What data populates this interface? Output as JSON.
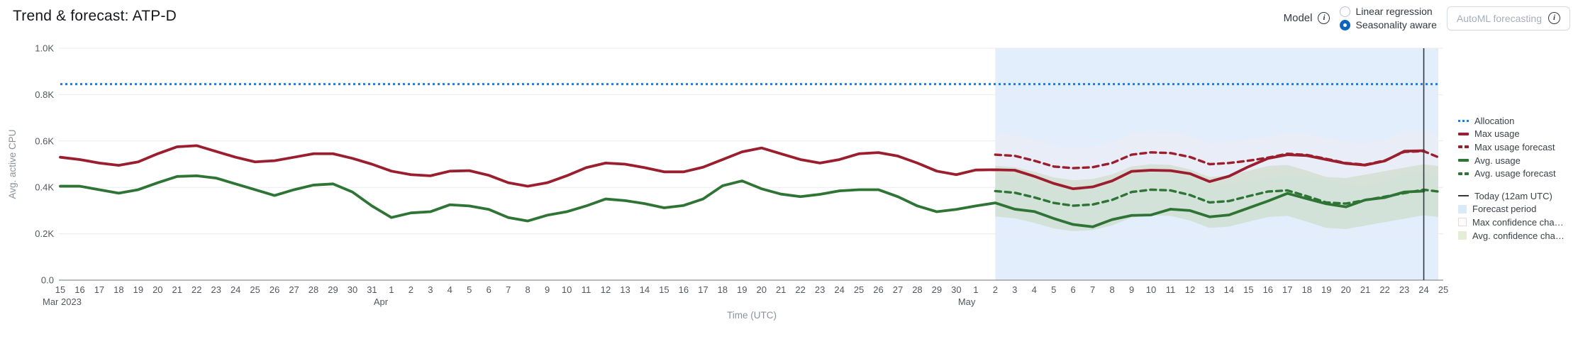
{
  "header": {
    "title": "Trend & forecast: ATP-D"
  },
  "controls": {
    "model_label": "Model",
    "radios": [
      {
        "label": "Linear regression",
        "selected": false
      },
      {
        "label": "Seasonality aware",
        "selected": true
      }
    ],
    "automl_button": {
      "label": "AutoML forecasting",
      "disabled": true
    }
  },
  "chart_data": {
    "type": "line",
    "xlabel": "Time (UTC)",
    "ylabel": "Avg. active CPU",
    "ylim": [
      0,
      1000
    ],
    "grid": true,
    "legend_position": "right",
    "y_ticks": [
      {
        "v": 0,
        "label": "0.0"
      },
      {
        "v": 200,
        "label": "0.2K"
      },
      {
        "v": 400,
        "label": "0.4K"
      },
      {
        "v": 600,
        "label": "0.6K"
      },
      {
        "v": 800,
        "label": "0.8K"
      },
      {
        "v": 1000,
        "label": "1.0K"
      }
    ],
    "x_day_labels": [
      "15",
      "16",
      "17",
      "18",
      "19",
      "20",
      "21",
      "22",
      "23",
      "24",
      "25",
      "26",
      "27",
      "28",
      "29",
      "30",
      "31",
      "1",
      "2",
      "3",
      "4",
      "5",
      "6",
      "7",
      "8",
      "9",
      "10",
      "11",
      "12",
      "13",
      "14",
      "15",
      "16",
      "17",
      "18",
      "19",
      "20",
      "21",
      "22",
      "23",
      "24",
      "25",
      "26",
      "27",
      "28",
      "29",
      "30",
      "1",
      "2",
      "3",
      "4",
      "5",
      "6",
      "7",
      "8",
      "9",
      "10",
      "11",
      "12",
      "13",
      "14",
      "15",
      "16",
      "17",
      "18",
      "19",
      "20",
      "21",
      "22",
      "23",
      "24",
      "25"
    ],
    "month_markers": [
      {
        "index": 0,
        "label": "Mar 2023"
      },
      {
        "index": 17,
        "label": "Apr"
      },
      {
        "index": 47,
        "label": "May"
      }
    ],
    "allocation_value": 845,
    "forecast_start_index": 48,
    "today_index": 70,
    "series": [
      {
        "name": "Max usage",
        "start_index": 0,
        "style": "solid",
        "color": "#9a1e2d",
        "values": [
          530,
          520,
          505,
          495,
          510,
          545,
          575,
          580,
          555,
          530,
          510,
          515,
          530,
          545,
          545,
          525,
          500,
          470,
          455,
          450,
          470,
          472,
          452,
          420,
          405,
          420,
          450,
          485,
          505,
          500,
          485,
          467,
          467,
          487,
          520,
          553,
          570,
          545,
          520,
          505,
          520,
          545,
          550,
          535,
          505,
          470,
          455,
          475,
          476,
          474,
          448,
          417,
          394,
          402,
          428,
          469,
          474,
          472,
          459,
          425,
          448,
          489,
          525,
          541,
          537,
          520,
          503,
          496,
          514,
          556,
          558
        ]
      },
      {
        "name": "Avg. usage",
        "start_index": 0,
        "style": "solid",
        "color": "#2e7434",
        "values": [
          405,
          405,
          390,
          375,
          390,
          420,
          447,
          450,
          440,
          415,
          390,
          365,
          390,
          410,
          415,
          380,
          320,
          270,
          290,
          295,
          325,
          320,
          305,
          270,
          255,
          280,
          295,
          320,
          350,
          343,
          330,
          312,
          322,
          350,
          407,
          428,
          394,
          371,
          360,
          370,
          385,
          390,
          390,
          360,
          320,
          295,
          305,
          320,
          333,
          306,
          296,
          266,
          240,
          230,
          261,
          279,
          281,
          306,
          300,
          273,
          281,
          311,
          341,
          374,
          351,
          329,
          316,
          346,
          356,
          380,
          384
        ]
      },
      {
        "name": "Max usage forecast",
        "start_index": 48,
        "style": "dashed",
        "color": "#9a1e2d",
        "values": [
          541,
          536,
          515,
          490,
          483,
          487,
          505,
          541,
          551,
          548,
          531,
          500,
          505,
          515,
          528,
          545,
          540,
          523,
          505,
          498,
          516,
          553,
          556,
          530
        ]
      },
      {
        "name": "Avg. usage forecast",
        "start_index": 48,
        "style": "dashed",
        "color": "#2e7434",
        "values": [
          384,
          377,
          357,
          333,
          321,
          326,
          346,
          380,
          390,
          387,
          367,
          335,
          341,
          362,
          382,
          387,
          362,
          335,
          330,
          345,
          360,
          375,
          390,
          382
        ]
      }
    ],
    "bands": [
      {
        "name": "Max confidence channel",
        "start_index": 48,
        "fill": "rgba(255,235,238,0.25)",
        "upper": [
          631,
          626,
          605,
          580,
          573,
          577,
          595,
          631,
          641,
          638,
          621,
          590,
          595,
          605,
          618,
          635,
          630,
          613,
          595,
          588,
          606,
          643,
          646,
          620
        ],
        "lower": [
          451,
          446,
          425,
          400,
          393,
          397,
          415,
          451,
          461,
          458,
          441,
          410,
          415,
          425,
          438,
          455,
          450,
          433,
          415,
          408,
          426,
          463,
          466,
          440
        ]
      },
      {
        "name": "Avg confidence channel",
        "start_index": 48,
        "fill": "rgba(149,180,85,0.20)",
        "upper": [
          494,
          487,
          467,
          443,
          431,
          436,
          456,
          490,
          500,
          497,
          477,
          445,
          451,
          472,
          492,
          497,
          472,
          445,
          440,
          455,
          470,
          485,
          500,
          492
        ],
        "lower": [
          274,
          267,
          247,
          223,
          211,
          216,
          236,
          270,
          280,
          277,
          257,
          225,
          231,
          252,
          272,
          277,
          252,
          225,
          220,
          235,
          250,
          265,
          280,
          272
        ]
      }
    ],
    "colors": {
      "allocation": "#1f7de2",
      "forecast_period": "#e2eefb",
      "today_line": "#343741",
      "grid": "#e9ebee",
      "axis_line": "#8a8f98",
      "tick_text": "#54575e",
      "axis_title_text": "#8b919c"
    }
  },
  "legend": [
    {
      "label": "Allocation",
      "swatch": "dotted",
      "color": "#1f7de2"
    },
    {
      "label": "Max usage",
      "swatch": "solid",
      "color": "#9a1e2d"
    },
    {
      "label": "Max usage forecast",
      "swatch": "dashed",
      "color": "#9a1e2d"
    },
    {
      "label": "Avg. usage",
      "swatch": "solid",
      "color": "#2e7434"
    },
    {
      "label": "Avg. usage forecast",
      "swatch": "dashed",
      "color": "#2e7434"
    },
    {
      "label": "Today (12am UTC)",
      "swatch": "line",
      "color": "#343741",
      "group_gap": true
    },
    {
      "label": "Forecast period",
      "swatch": "square",
      "color": "#d9eafa"
    },
    {
      "label": "Max confidence cha…",
      "swatch": "square-outline",
      "color": "#ffffff",
      "border": "#eed6d9"
    },
    {
      "label": "Avg. confidence cha…",
      "swatch": "square",
      "color": "#e4edd6"
    }
  ]
}
